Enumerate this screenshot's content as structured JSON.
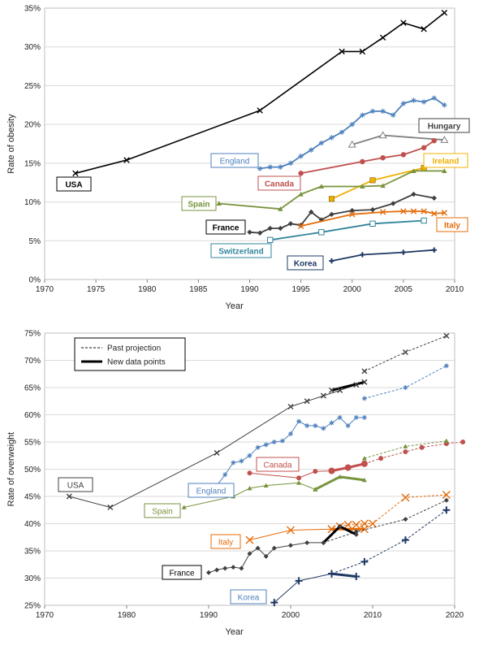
{
  "chart_data": [
    {
      "type": "line",
      "xlabel": "Year",
      "ylabel": "Rate of obesity",
      "xlim": [
        1970,
        2010
      ],
      "ylim": [
        0,
        35
      ],
      "xticks": [
        "1970",
        "1975",
        "1980",
        "1985",
        "1990",
        "1995",
        "2000",
        "2005",
        "2010"
      ],
      "yticks": [
        "0%",
        "5%",
        "10%",
        "15%",
        "20%",
        "25%",
        "30%",
        "35%"
      ],
      "grid": "horizontal",
      "series": [
        {
          "name": "USA",
          "color": "#000000",
          "marker": "x",
          "x": [
            1973,
            1978,
            1991,
            1999,
            2001,
            2003,
            2005,
            2007,
            2009
          ],
          "y": [
            13.7,
            15.4,
            21.8,
            29.4,
            29.4,
            31.2,
            33.1,
            32.3,
            34.4
          ]
        },
        {
          "name": "England",
          "color": "#4f81bd",
          "marker": "star",
          "x": [
            1991,
            1992,
            1993,
            1994,
            1995,
            1996,
            1997,
            1998,
            1999,
            2000,
            2001,
            2002,
            2003,
            2004,
            2005,
            2006,
            2007,
            2008,
            2009
          ],
          "y": [
            14.3,
            14.5,
            14.5,
            15.0,
            15.9,
            16.7,
            17.6,
            18.3,
            19.0,
            20.0,
            21.2,
            21.7,
            21.7,
            21.2,
            22.7,
            23.1,
            22.9,
            23.4,
            22.5
          ]
        },
        {
          "name": "Hungary",
          "color": "#7f7f7f",
          "marker": "triangle-open",
          "x": [
            2000,
            2003,
            2009
          ],
          "y": [
            17.4,
            18.6,
            18.0
          ]
        },
        {
          "name": "Canada",
          "color": "#c0504d",
          "marker": "circle",
          "x": [
            1995,
            2001,
            2003,
            2005,
            2007,
            2008
          ],
          "y": [
            13.7,
            15.2,
            15.7,
            16.1,
            17.0,
            17.9
          ]
        },
        {
          "name": "Ireland",
          "color": "#f0b000",
          "marker": "square",
          "x": [
            1998,
            2002,
            2007
          ],
          "y": [
            10.4,
            12.8,
            14.4
          ]
        },
        {
          "name": "Spain",
          "color": "#77933c",
          "marker": "triangle",
          "x": [
            1987,
            1993,
            1995,
            1997,
            2001,
            2003,
            2006,
            2009
          ],
          "y": [
            9.8,
            9.1,
            11.0,
            12.0,
            12.0,
            12.1,
            14.0,
            14.0
          ]
        },
        {
          "name": "France",
          "color": "#404040",
          "marker": "diamond",
          "x": [
            1990,
            1991,
            1992,
            1993,
            1994,
            1995,
            1996,
            1997,
            1998,
            2000,
            2002,
            2004,
            2006,
            2008
          ],
          "y": [
            6.1,
            6.0,
            6.6,
            6.6,
            7.2,
            7.0,
            8.7,
            7.7,
            8.4,
            8.9,
            9.0,
            9.8,
            11.0,
            10.5
          ]
        },
        {
          "name": "Italy",
          "color": "#e46c0a",
          "marker": "x",
          "x": [
            1995,
            2000,
            2003,
            2005,
            2006,
            2007,
            2008,
            2009
          ],
          "y": [
            6.9,
            8.4,
            8.7,
            8.8,
            8.8,
            8.8,
            8.5,
            8.6
          ]
        },
        {
          "name": "Switzerland",
          "color": "#31859c",
          "marker": "square-open",
          "x": [
            1992,
            1997,
            2002,
            2007
          ],
          "y": [
            5.1,
            6.1,
            7.2,
            7.6
          ]
        },
        {
          "name": "Korea",
          "color": "#1f3864",
          "marker": "plus",
          "x": [
            1998,
            2001,
            2005,
            2008
          ],
          "y": [
            2.4,
            3.2,
            3.5,
            3.8
          ]
        }
      ]
    },
    {
      "type": "line",
      "xlabel": "Year",
      "ylabel": "Rate of overweight",
      "xlim": [
        1970,
        2020
      ],
      "ylim": [
        25,
        75
      ],
      "xticks": [
        "1970",
        "1980",
        "1990",
        "2000",
        "2010",
        "2020"
      ],
      "yticks": [
        "25%",
        "30%",
        "35%",
        "40%",
        "45%",
        "50%",
        "55%",
        "60%",
        "65%",
        "70%",
        "75%"
      ],
      "grid": "horizontal",
      "legend_placement": "top-left",
      "legend": [
        {
          "label": "Past projection",
          "style": "dashed"
        },
        {
          "label": "New data points",
          "style": "bold"
        }
      ],
      "series": [
        {
          "name": "USA",
          "color": "#404040",
          "marker": "x",
          "x": [
            1973,
            1978,
            1991,
            2000,
            2002,
            2004,
            2006,
            2008,
            2009
          ],
          "y": [
            45.0,
            43.0,
            53.0,
            61.5,
            62.5,
            63.5,
            64.5,
            65.5,
            66.0
          ],
          "proj_x": [
            2009,
            2014,
            2019
          ],
          "proj_y": [
            68.0,
            71.5,
            74.5
          ],
          "new_x": [
            2005,
            2009
          ],
          "new_y": [
            64.5,
            66.0
          ]
        },
        {
          "name": "England",
          "color": "#4f81bd",
          "marker": "star",
          "x": [
            1991,
            1992,
            1993,
            1994,
            1995,
            1996,
            1997,
            1998,
            1999,
            2000,
            2001,
            2002,
            2003,
            2004,
            2005,
            2006,
            2007,
            2008,
            2009
          ],
          "y": [
            47.0,
            49.0,
            51.2,
            51.5,
            52.5,
            54.0,
            54.5,
            55.0,
            55.2,
            56.5,
            58.8,
            58.0,
            58.0,
            57.5,
            58.5,
            59.5,
            58.0,
            59.5,
            59.5
          ],
          "proj_x": [
            2009,
            2014,
            2019
          ],
          "proj_y": [
            63.0,
            65.0,
            69.0
          ],
          "new_x": [],
          "new_y": []
        },
        {
          "name": "Canada",
          "color": "#c0504d",
          "marker": "circle",
          "x": [
            1995,
            2001,
            2003,
            2005
          ],
          "y": [
            49.3,
            48.4,
            49.6,
            49.7
          ],
          "proj_x": [
            2009,
            2011,
            2014,
            2016,
            2019,
            2021
          ],
          "proj_y": [
            51.0,
            52.0,
            53.2,
            54.0,
            54.7,
            55.0
          ],
          "new_x": [
            2005,
            2007,
            2009
          ],
          "new_y": [
            49.7,
            50.3,
            51.0
          ]
        },
        {
          "name": "Spain",
          "color": "#77933c",
          "marker": "triangle",
          "x": [
            1987,
            1993,
            1995,
            1997,
            2001,
            2003
          ],
          "y": [
            43.0,
            45.0,
            46.5,
            47.0,
            47.5,
            46.3
          ],
          "proj_x": [
            2009,
            2014,
            2019
          ],
          "proj_y": [
            52.0,
            54.2,
            55.2
          ],
          "new_x": [
            2003,
            2006,
            2009
          ],
          "new_y": [
            46.3,
            48.6,
            48.0
          ]
        },
        {
          "name": "Italy",
          "color": "#e46c0a",
          "marker": "x",
          "x": [
            1995,
            2000,
            2005
          ],
          "y": [
            37.0,
            38.8,
            39.0
          ],
          "proj_x": [
            2006,
            2007,
            2008,
            2009,
            2010,
            2014,
            2019
          ],
          "proj_y": [
            39.5,
            39.8,
            39.8,
            40.0,
            40.0,
            44.8,
            45.3
          ],
          "new_x": [
            2005,
            2009
          ],
          "new_y": [
            39.0,
            39.0
          ]
        },
        {
          "name": "France",
          "color": "#404040",
          "marker": "diamond",
          "x": [
            1990,
            1991,
            1992,
            1993,
            1994,
            1995,
            1996,
            1997,
            1998,
            2000,
            2002,
            2004
          ],
          "y": [
            31.0,
            31.5,
            31.8,
            32.0,
            31.8,
            34.5,
            35.5,
            34.0,
            35.5,
            36.0,
            36.5,
            36.5
          ],
          "proj_x": [
            2004,
            2008,
            2014,
            2019
          ],
          "proj_y": [
            36.5,
            38.5,
            40.8,
            44.3
          ],
          "new_x": [
            2004,
            2006,
            2008
          ],
          "new_y": [
            36.5,
            39.5,
            38.0
          ]
        },
        {
          "name": "Korea",
          "color": "#1f3864",
          "marker": "plus",
          "x": [
            1998,
            2001,
            2005
          ],
          "y": [
            25.5,
            29.5,
            30.8
          ],
          "proj_x": [
            2005,
            2009,
            2014,
            2019
          ],
          "proj_y": [
            30.8,
            33.0,
            37.0,
            42.5
          ],
          "new_x": [
            2005,
            2008
          ],
          "new_y": [
            30.8,
            30.3
          ]
        }
      ]
    }
  ]
}
